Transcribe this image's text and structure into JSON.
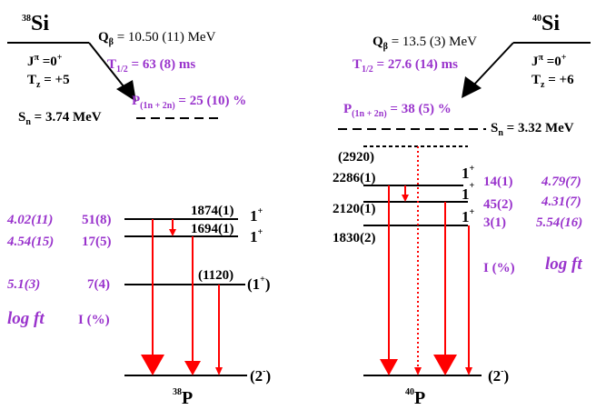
{
  "left": {
    "parent": {
      "mass": "38",
      "symbol": "Si"
    },
    "q": {
      "main": "Q",
      "sub": "β",
      "value": " = 10.50 (11) MeV"
    },
    "jpi": {
      "main": "J",
      "sup": "π",
      "value": " =0",
      "parity": "+"
    },
    "tz": {
      "main": "T",
      "sub": "z",
      "value": " = +5"
    },
    "halflife": {
      "main": "T",
      "sub": "1/2",
      "value": " = 63 (8) ms"
    },
    "pn": {
      "main": "P",
      "sub": "(1n + 2n)",
      "value": " = 25 (10) %"
    },
    "sn": {
      "main": "S",
      "sub": "n",
      "value": " = 3.74 MeV"
    },
    "levels": [
      {
        "energy": "1874(1)",
        "spin": "1",
        "parity": "+",
        "intensity": "51(8)",
        "logft": "4.02(11)"
      },
      {
        "energy": "1694(1)",
        "spin": "1",
        "parity": "+",
        "intensity": "17(5)",
        "logft": "4.54(15)"
      },
      {
        "energy": "(1120)",
        "spin": "(1",
        "parity": "+",
        "close": ")",
        "intensity": "7(4)",
        "logft": "5.1(3)"
      }
    ],
    "logft_label": "log ft",
    "intensity_label": "I (%)",
    "ground": {
      "spin": "(2",
      "parity": "-",
      "close": ")"
    },
    "daughter": {
      "mass": "38",
      "symbol": "P"
    }
  },
  "right": {
    "parent": {
      "mass": "40",
      "symbol": "Si"
    },
    "q": {
      "main": "Q",
      "sub": "β",
      "value": " = 13.5 (3) MeV"
    },
    "jpi": {
      "main": "J",
      "sup": "π",
      "value": " =0",
      "parity": "+"
    },
    "tz": {
      "main": "T",
      "sub": "z",
      "value": " = +6"
    },
    "halflife": {
      "main": "T",
      "sub": "1/2",
      "value": " = 27.6 (14) ms"
    },
    "pn": {
      "main": "P",
      "sub": "(1n + 2n)",
      "value": " = 38 (5) %"
    },
    "sn": {
      "main": "S",
      "sub": "n",
      "value": " = 3.32 MeV"
    },
    "unbound_level": "(2920)",
    "levels": [
      {
        "energy": "2286(1)",
        "spin": "1",
        "parity": "+",
        "intensity": "14(1)",
        "logft": "4.79(7)"
      },
      {
        "energy": "2120(1)",
        "spin": "1",
        "parity": "+",
        "intensity": "45(2)",
        "logft": "4.31(7)"
      },
      {
        "energy": "1830(2)",
        "spin": "1",
        "parity": "+",
        "intensity": "3(1)",
        "logft": "5.54(16)"
      }
    ],
    "intensity_label": "I (%)",
    "logft_label": "log ft",
    "ground": {
      "spin": "(2",
      "parity": "-",
      "close": ")"
    },
    "daughter": {
      "mass": "40",
      "symbol": "P"
    }
  }
}
